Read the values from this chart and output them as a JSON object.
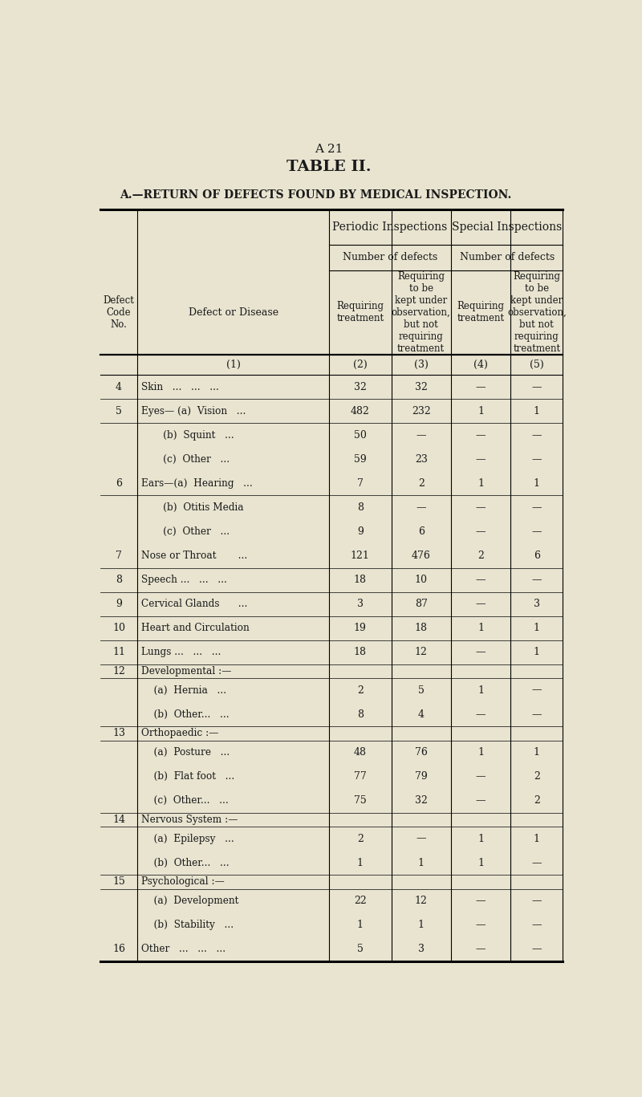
{
  "page_label": "A 21",
  "title": "TABLE II.",
  "subtitle": "A.—RETURN OF DEFECTS FOUND BY MEDICAL INSPECTION.",
  "bg_color": "#e8e4d0",
  "text_color": "#1a1a1a",
  "rows": [
    {
      "code": "4",
      "disease": "Skin   ...   ...   ...",
      "c2": "32",
      "c3": "32",
      "c4": "—",
      "c5": "—",
      "group_header": false
    },
    {
      "code": "5",
      "disease": "Eyes— (a)  Vision   ...",
      "c2": "482",
      "c3": "232",
      "c4": "1",
      "c5": "1",
      "group_header": false
    },
    {
      "code": "",
      "disease": "       (b)  Squint   ...",
      "c2": "50",
      "c3": "—",
      "c4": "—",
      "c5": "—",
      "group_header": false
    },
    {
      "code": "",
      "disease": "       (c)  Other   ...",
      "c2": "59",
      "c3": "23",
      "c4": "—",
      "c5": "—",
      "group_header": false
    },
    {
      "code": "6",
      "disease": "Ears—(a)  Hearing   ...",
      "c2": "7",
      "c3": "2",
      "c4": "1",
      "c5": "1",
      "group_header": false
    },
    {
      "code": "",
      "disease": "       (b)  Otitis Media",
      "c2": "8",
      "c3": "—",
      "c4": "—",
      "c5": "—",
      "group_header": false
    },
    {
      "code": "",
      "disease": "       (c)  Other   ...",
      "c2": "9",
      "c3": "6",
      "c4": "—",
      "c5": "—",
      "group_header": false
    },
    {
      "code": "7",
      "disease": "Nose or Throat       ...",
      "c2": "121",
      "c3": "476",
      "c4": "2",
      "c5": "6",
      "group_header": false
    },
    {
      "code": "8",
      "disease": "Speech ...   ...   ...",
      "c2": "18",
      "c3": "10",
      "c4": "—",
      "c5": "—",
      "group_header": false
    },
    {
      "code": "9",
      "disease": "Cervical Glands      ...",
      "c2": "3",
      "c3": "87",
      "c4": "—",
      "c5": "3",
      "group_header": false
    },
    {
      "code": "10",
      "disease": "Heart and Circulation",
      "c2": "19",
      "c3": "18",
      "c4": "1",
      "c5": "1",
      "group_header": false
    },
    {
      "code": "11",
      "disease": "Lungs ...   ...   ...",
      "c2": "18",
      "c3": "12",
      "c4": "—",
      "c5": "1",
      "group_header": false
    },
    {
      "code": "12",
      "disease": "Developmental :—",
      "c2": "",
      "c3": "",
      "c4": "",
      "c5": "",
      "group_header": true
    },
    {
      "code": "",
      "disease": "    (a)  Hernia   ...",
      "c2": "2",
      "c3": "5",
      "c4": "1",
      "c5": "—",
      "group_header": false
    },
    {
      "code": "",
      "disease": "    (b)  Other...   ...",
      "c2": "8",
      "c3": "4",
      "c4": "—",
      "c5": "—",
      "group_header": false
    },
    {
      "code": "13",
      "disease": "Orthopaedic :—",
      "c2": "",
      "c3": "",
      "c4": "",
      "c5": "",
      "group_header": true
    },
    {
      "code": "",
      "disease": "    (a)  Posture   ...",
      "c2": "48",
      "c3": "76",
      "c4": "1",
      "c5": "1",
      "group_header": false
    },
    {
      "code": "",
      "disease": "    (b)  Flat foot   ...",
      "c2": "77",
      "c3": "79",
      "c4": "—",
      "c5": "2",
      "group_header": false
    },
    {
      "code": "",
      "disease": "    (c)  Other...   ...",
      "c2": "75",
      "c3": "32",
      "c4": "—",
      "c5": "2",
      "group_header": false
    },
    {
      "code": "14",
      "disease": "Nervous System :—",
      "c2": "",
      "c3": "",
      "c4": "",
      "c5": "",
      "group_header": true
    },
    {
      "code": "",
      "disease": "    (a)  Epilepsy   ...",
      "c2": "2",
      "c3": "—",
      "c4": "1",
      "c5": "1",
      "group_header": false
    },
    {
      "code": "",
      "disease": "    (b)  Other...   ...",
      "c2": "1",
      "c3": "1",
      "c4": "1",
      "c5": "—",
      "group_header": false
    },
    {
      "code": "15",
      "disease": "Psychological :—",
      "c2": "",
      "c3": "",
      "c4": "",
      "c5": "",
      "group_header": true
    },
    {
      "code": "",
      "disease": "    (a)  Development",
      "c2": "22",
      "c3": "12",
      "c4": "—",
      "c5": "—",
      "group_header": false
    },
    {
      "code": "",
      "disease": "    (b)  Stability   ...",
      "c2": "1",
      "c3": "1",
      "c4": "—",
      "c5": "—",
      "group_header": false
    },
    {
      "code": "16",
      "disease": "Other   ...   ...   ...",
      "c2": "5",
      "c3": "3",
      "c4": "—",
      "c5": "—",
      "group_header": false
    }
  ]
}
